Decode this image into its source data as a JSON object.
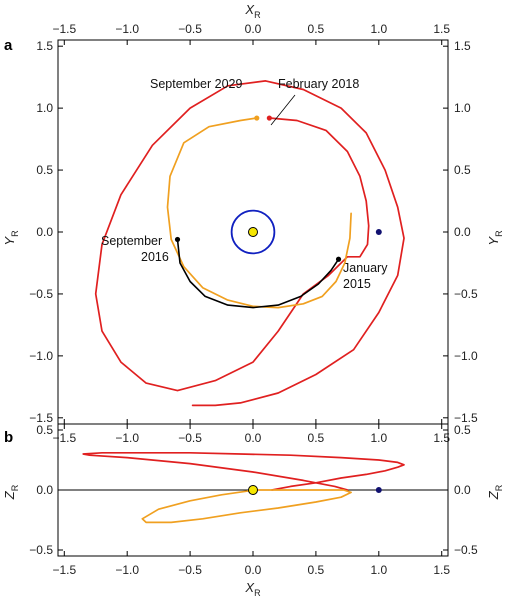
{
  "figure": {
    "panels": [
      "a",
      "b"
    ]
  },
  "chart_data": [
    {
      "panel": "a",
      "type": "line",
      "title": "",
      "xlabel": "X",
      "xlabel_sub": "R",
      "ylabel": "Y",
      "ylabel_sub": "R",
      "xlim": [
        -1.55,
        1.55
      ],
      "ylim": [
        -1.55,
        1.55
      ],
      "xticks": [
        -1.5,
        -1.0,
        -0.5,
        0.0,
        0.5,
        1.0,
        1.5
      ],
      "xtick_labels": [
        "−1.5",
        "−1.0",
        "−0.5",
        "0.0",
        "0.5",
        "1.0",
        "1.5"
      ],
      "yticks": [
        -1.5,
        -1.0,
        -0.5,
        0.0,
        0.5,
        1.0,
        1.5
      ],
      "ytick_labels": [
        "−1.5",
        "−1.0",
        "−0.5",
        "0.0",
        "0.5",
        "1.0",
        "1.5"
      ],
      "grid": false,
      "colors": {
        "red": "#e02020",
        "orange": "#f0a020",
        "black": "#000000",
        "blue": "#1020c0",
        "sun": "#f5e600",
        "navy": "#101070"
      },
      "series": [
        {
          "color": "#e02020",
          "x": [
            0.13,
            0.35,
            0.58,
            0.75,
            0.85,
            0.9,
            0.92,
            0.91,
            0.85,
            0.75,
            0.6,
            0.4,
            0.2,
            0.0,
            -0.3,
            -0.6,
            -0.85,
            -1.05,
            -1.2,
            -1.25,
            -1.2,
            -1.05,
            -0.8,
            -0.5,
            -0.2,
            0.1,
            0.4,
            0.7,
            0.9,
            1.05,
            1.15,
            1.2,
            1.15,
            1.0,
            0.8,
            0.5,
            0.2,
            -0.1,
            -0.3,
            -0.4,
            -0.48
          ],
          "y": [
            0.92,
            0.9,
            0.82,
            0.65,
            0.45,
            0.25,
            0.05,
            -0.1,
            -0.2,
            -0.2,
            -0.35,
            -0.5,
            -0.8,
            -1.05,
            -1.2,
            -1.28,
            -1.22,
            -1.05,
            -0.8,
            -0.5,
            -0.1,
            0.3,
            0.7,
            1.0,
            1.18,
            1.22,
            1.15,
            1.0,
            0.8,
            0.5,
            0.2,
            -0.05,
            -0.35,
            -0.65,
            -0.95,
            -1.15,
            -1.3,
            -1.38,
            -1.4,
            -1.4,
            -1.4
          ]
        },
        {
          "color": "#f0a020",
          "x": [
            0.78,
            0.77,
            0.73,
            0.66,
            0.55,
            0.4,
            0.2,
            0.0,
            -0.2,
            -0.4,
            -0.55,
            -0.65,
            -0.68,
            -0.66,
            -0.55,
            -0.35,
            -0.1,
            0.03
          ],
          "y": [
            0.15,
            -0.05,
            -0.25,
            -0.4,
            -0.52,
            -0.58,
            -0.61,
            -0.6,
            -0.55,
            -0.45,
            -0.28,
            -0.06,
            0.2,
            0.45,
            0.72,
            0.85,
            0.9,
            0.92
          ]
        },
        {
          "color": "#000000",
          "x": [
            -0.6,
            -0.58,
            -0.5,
            -0.38,
            -0.2,
            0.0,
            0.2,
            0.38,
            0.52,
            0.62,
            0.68
          ],
          "y": [
            -0.06,
            -0.25,
            -0.4,
            -0.52,
            -0.59,
            -0.61,
            -0.59,
            -0.52,
            -0.42,
            -0.31,
            -0.22
          ]
        },
        {
          "color": "#1020c0",
          "shape": "circle",
          "center": [
            0,
            0
          ],
          "radius": 0.17
        }
      ],
      "points": [
        {
          "name": "sun",
          "x": 0.0,
          "y": 0.0,
          "color": "#f5e600"
        },
        {
          "name": "september-2016",
          "x": -0.6,
          "y": -0.06,
          "color": "#000000"
        },
        {
          "name": "january-2015",
          "x": 0.68,
          "y": -0.22,
          "color": "#000000"
        },
        {
          "name": "september-2029",
          "x": 0.03,
          "y": 0.92,
          "color": "#f0a020"
        },
        {
          "name": "february-2018",
          "x": 0.13,
          "y": 0.92,
          "color": "#e02020"
        },
        {
          "name": "navy-point",
          "x": 1.0,
          "y": 0.0,
          "color": "#101070"
        }
      ],
      "annotations": [
        {
          "name": "september-2029",
          "lines": [
            "September 2029"
          ]
        },
        {
          "name": "february-2018",
          "lines": [
            "February 2018"
          ]
        },
        {
          "name": "september-2016",
          "lines": [
            "September",
            "2016"
          ]
        },
        {
          "name": "january-2015",
          "lines": [
            "January",
            "2015"
          ]
        }
      ]
    },
    {
      "panel": "b",
      "type": "line",
      "title": "",
      "xlabel": "X",
      "xlabel_sub": "R",
      "ylabel": "Z",
      "ylabel_sub": "R",
      "xlim": [
        -1.55,
        1.55
      ],
      "ylim": [
        -0.55,
        0.55
      ],
      "xticks": [
        -1.5,
        -1.0,
        -0.5,
        0.0,
        0.5,
        1.0,
        1.5
      ],
      "xtick_labels": [
        "−1.5",
        "−1.0",
        "−0.5",
        "0.0",
        "0.5",
        "1.0",
        "1.5"
      ],
      "yticks": [
        -0.5,
        0.0,
        0.5
      ],
      "ytick_labels": [
        "−0.5",
        "0.0",
        "0.5"
      ],
      "grid": false,
      "zero_line": true,
      "series": [
        {
          "color": "#e02020",
          "x": [
            0.15,
            0.3,
            0.5,
            0.7,
            0.9,
            1.05,
            1.15,
            1.2,
            1.15,
            1.0,
            0.7,
            0.3,
            -0.1,
            -0.5,
            -0.9,
            -1.2,
            -1.35,
            -1.3,
            -1.0,
            -0.5,
            0.0,
            0.4,
            0.65,
            0.75
          ],
          "y": [
            0.0,
            0.03,
            0.06,
            0.1,
            0.13,
            0.16,
            0.19,
            0.21,
            0.23,
            0.25,
            0.27,
            0.29,
            0.3,
            0.31,
            0.31,
            0.31,
            0.3,
            0.29,
            0.27,
            0.22,
            0.15,
            0.08,
            0.03,
            0.0
          ]
        },
        {
          "color": "#f0a020",
          "x": [
            0.0,
            0.3,
            0.55,
            0.72,
            0.78,
            0.7,
            0.5,
            0.2,
            -0.1,
            -0.4,
            -0.65,
            -0.85,
            -0.88,
            -0.75,
            -0.5,
            -0.25,
            -0.05,
            0.0
          ],
          "y": [
            0.0,
            0.0,
            0.0,
            0.0,
            -0.02,
            -0.06,
            -0.1,
            -0.15,
            -0.19,
            -0.24,
            -0.27,
            -0.27,
            -0.24,
            -0.16,
            -0.09,
            -0.04,
            -0.01,
            0.0
          ]
        }
      ],
      "points": [
        {
          "name": "sun",
          "x": 0.0,
          "y": 0.0,
          "color": "#f5e600"
        },
        {
          "name": "navy-point",
          "x": 1.0,
          "y": 0.0,
          "color": "#101070"
        }
      ]
    }
  ]
}
